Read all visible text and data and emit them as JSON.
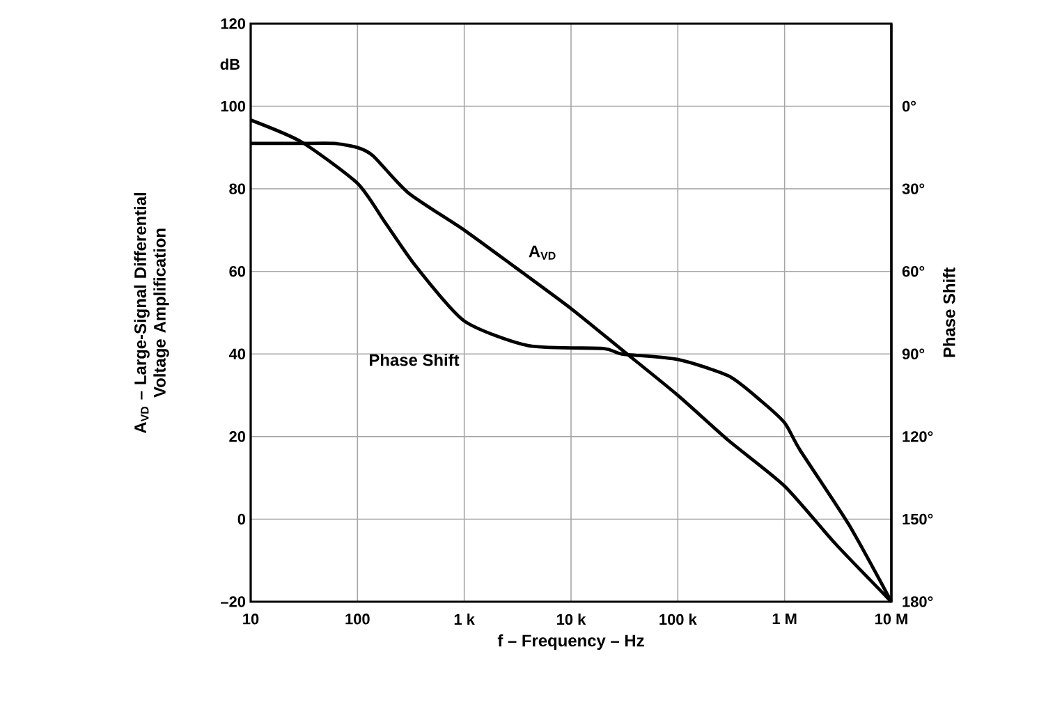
{
  "chart_data": {
    "type": "line",
    "xlabel": "f – Frequency – Hz",
    "ylabel": "A$_{VD}$ – Large-Signal Differential Voltage Amplification",
    "y2label": "Phase Shift",
    "log": "x",
    "grid": true,
    "xlim": [
      10,
      10000000
    ],
    "xticks": [
      10,
      100,
      {
        "value": 1000,
        "label": "1 k"
      },
      {
        "value": 10000,
        "label": "10 k"
      },
      {
        "value": 100000,
        "label": "100 k"
      },
      {
        "value": 1000000,
        "label": "1 M"
      },
      {
        "value": 10000000,
        "label": "10 M"
      }
    ],
    "ylim": [
      -20,
      120
    ],
    "yticks": [
      {
        "value": -20,
        "label": "–20"
      },
      0,
      20,
      40,
      60,
      80,
      100,
      120
    ],
    "y2lim": [
      180,
      -30
    ],
    "y2ticks": [
      {
        "value": 0,
        "label": "0°"
      },
      {
        "value": 30,
        "label": "30°"
      },
      {
        "value": 60,
        "label": "60°"
      },
      {
        "value": 90,
        "label": "90°"
      },
      {
        "value": 120,
        "label": "120°"
      },
      {
        "value": 150,
        "label": "150°"
      },
      {
        "value": 180,
        "label": "180°"
      }
    ],
    "annotations": [
      "dB"
    ],
    "series": [
      {
        "name": "A$_{VD}$",
        "color": "#000000",
        "x": [
          10,
          30,
          60,
          100,
          140,
          300,
          1000,
          3000,
          10000,
          30000,
          100000,
          300000,
          1000000,
          3000000,
          10000000
        ],
        "values": [
          91,
          91,
          91,
          90,
          88,
          79,
          70,
          61,
          51,
          41,
          30,
          19,
          8,
          -6,
          -20
        ]
      },
      {
        "name": "Phase Shift",
        "color": "#000000",
        "axis": "y2",
        "x": [
          10,
          30,
          100,
          180,
          350,
          1000,
          4000,
          20000,
          30000,
          100000,
          300000,
          600000,
          1000000,
          1400000,
          4000000,
          10000000
        ],
        "values": [
          5,
          13,
          28,
          42,
          58,
          78,
          87,
          88,
          90,
          92,
          98,
          107,
          115,
          125,
          152,
          180
        ]
      }
    ]
  }
}
